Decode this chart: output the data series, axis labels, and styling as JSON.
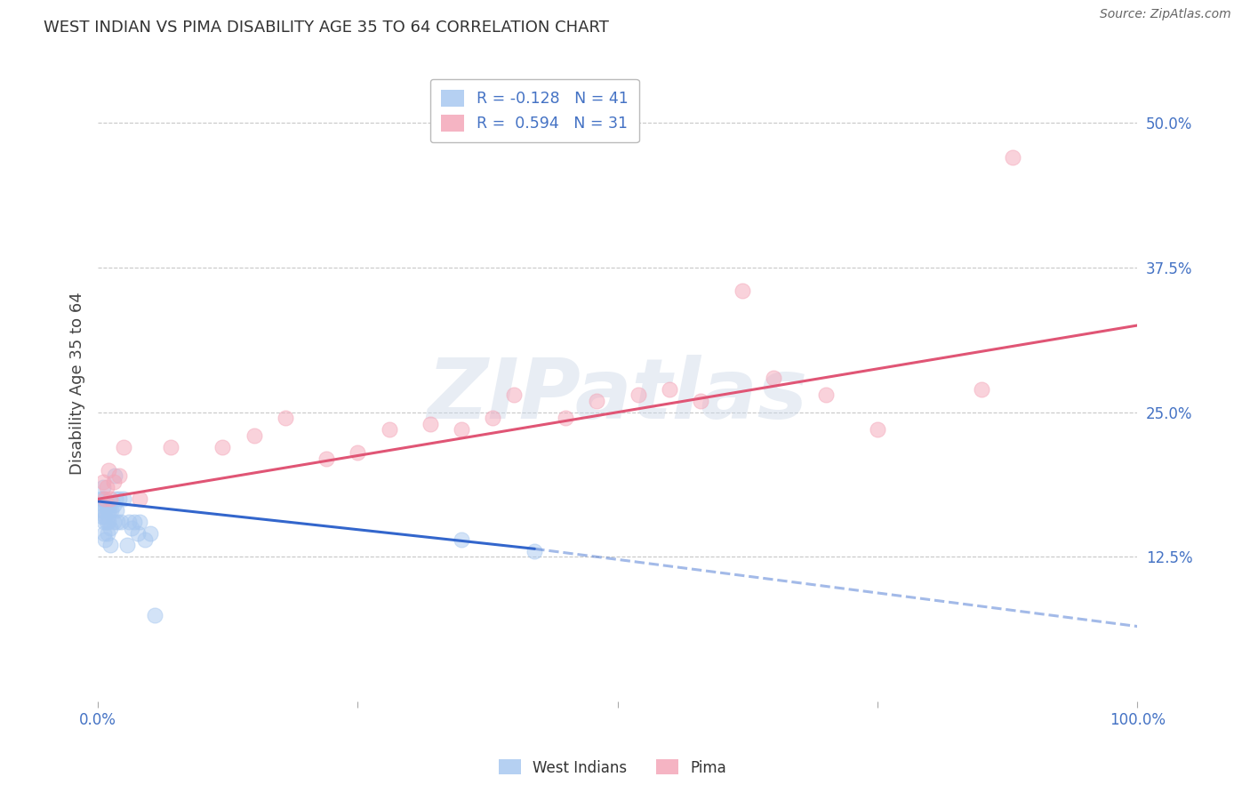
{
  "title": "WEST INDIAN VS PIMA DISABILITY AGE 35 TO 64 CORRELATION CHART",
  "source": "Source: ZipAtlas.com",
  "ylabel": "Disability Age 35 to 64",
  "xlim": [
    0.0,
    1.0
  ],
  "ylim": [
    0.0,
    0.55
  ],
  "y_ticks": [
    0.125,
    0.25,
    0.375,
    0.5
  ],
  "y_tick_labels": [
    "12.5%",
    "25.0%",
    "37.5%",
    "50.0%"
  ],
  "legend_entries": [
    {
      "label": "R = -0.128   N = 41",
      "color": "#a8c8f0"
    },
    {
      "label": "R =  0.594   N = 31",
      "color": "#f4a7b9"
    }
  ],
  "west_indian_color": "#a8c8f0",
  "pima_color": "#f4a7b9",
  "west_indian_line_color": "#3366cc",
  "pima_line_color": "#e05575",
  "background_color": "#ffffff",
  "watermark_text": "ZIPatlas",
  "west_indian_x": [
    0.003,
    0.003,
    0.004,
    0.005,
    0.005,
    0.005,
    0.006,
    0.006,
    0.006,
    0.007,
    0.007,
    0.008,
    0.008,
    0.009,
    0.009,
    0.01,
    0.01,
    0.011,
    0.012,
    0.012,
    0.013,
    0.015,
    0.015,
    0.016,
    0.017,
    0.018,
    0.019,
    0.02,
    0.022,
    0.025,
    0.028,
    0.03,
    0.032,
    0.035,
    0.038,
    0.04,
    0.045,
    0.05,
    0.055,
    0.35,
    0.42
  ],
  "west_indian_y": [
    0.175,
    0.165,
    0.16,
    0.185,
    0.175,
    0.165,
    0.17,
    0.155,
    0.145,
    0.16,
    0.14,
    0.17,
    0.155,
    0.165,
    0.145,
    0.17,
    0.155,
    0.165,
    0.15,
    0.135,
    0.165,
    0.17,
    0.155,
    0.195,
    0.175,
    0.165,
    0.155,
    0.175,
    0.155,
    0.175,
    0.135,
    0.155,
    0.15,
    0.155,
    0.145,
    0.155,
    0.14,
    0.145,
    0.075,
    0.14,
    0.13
  ],
  "pima_x": [
    0.005,
    0.007,
    0.008,
    0.01,
    0.012,
    0.015,
    0.02,
    0.025,
    0.04,
    0.07,
    0.12,
    0.15,
    0.18,
    0.22,
    0.25,
    0.28,
    0.32,
    0.35,
    0.38,
    0.4,
    0.45,
    0.48,
    0.52,
    0.55,
    0.58,
    0.62,
    0.65,
    0.7,
    0.75,
    0.85,
    0.88
  ],
  "pima_y": [
    0.19,
    0.175,
    0.185,
    0.2,
    0.175,
    0.19,
    0.195,
    0.22,
    0.175,
    0.22,
    0.22,
    0.23,
    0.245,
    0.21,
    0.215,
    0.235,
    0.24,
    0.235,
    0.245,
    0.265,
    0.245,
    0.26,
    0.265,
    0.27,
    0.26,
    0.355,
    0.28,
    0.265,
    0.235,
    0.27,
    0.47
  ],
  "wi_line_x0": 0.0,
  "wi_line_x_solid_end": 0.42,
  "wi_line_x_dashed_end": 1.0,
  "wi_line_y0": 0.173,
  "wi_line_y_solid_end": 0.132,
  "wi_line_y_dashed_end": 0.065,
  "pima_line_x0": 0.0,
  "pima_line_x_end": 1.0,
  "pima_line_y0": 0.175,
  "pima_line_y_end": 0.325
}
